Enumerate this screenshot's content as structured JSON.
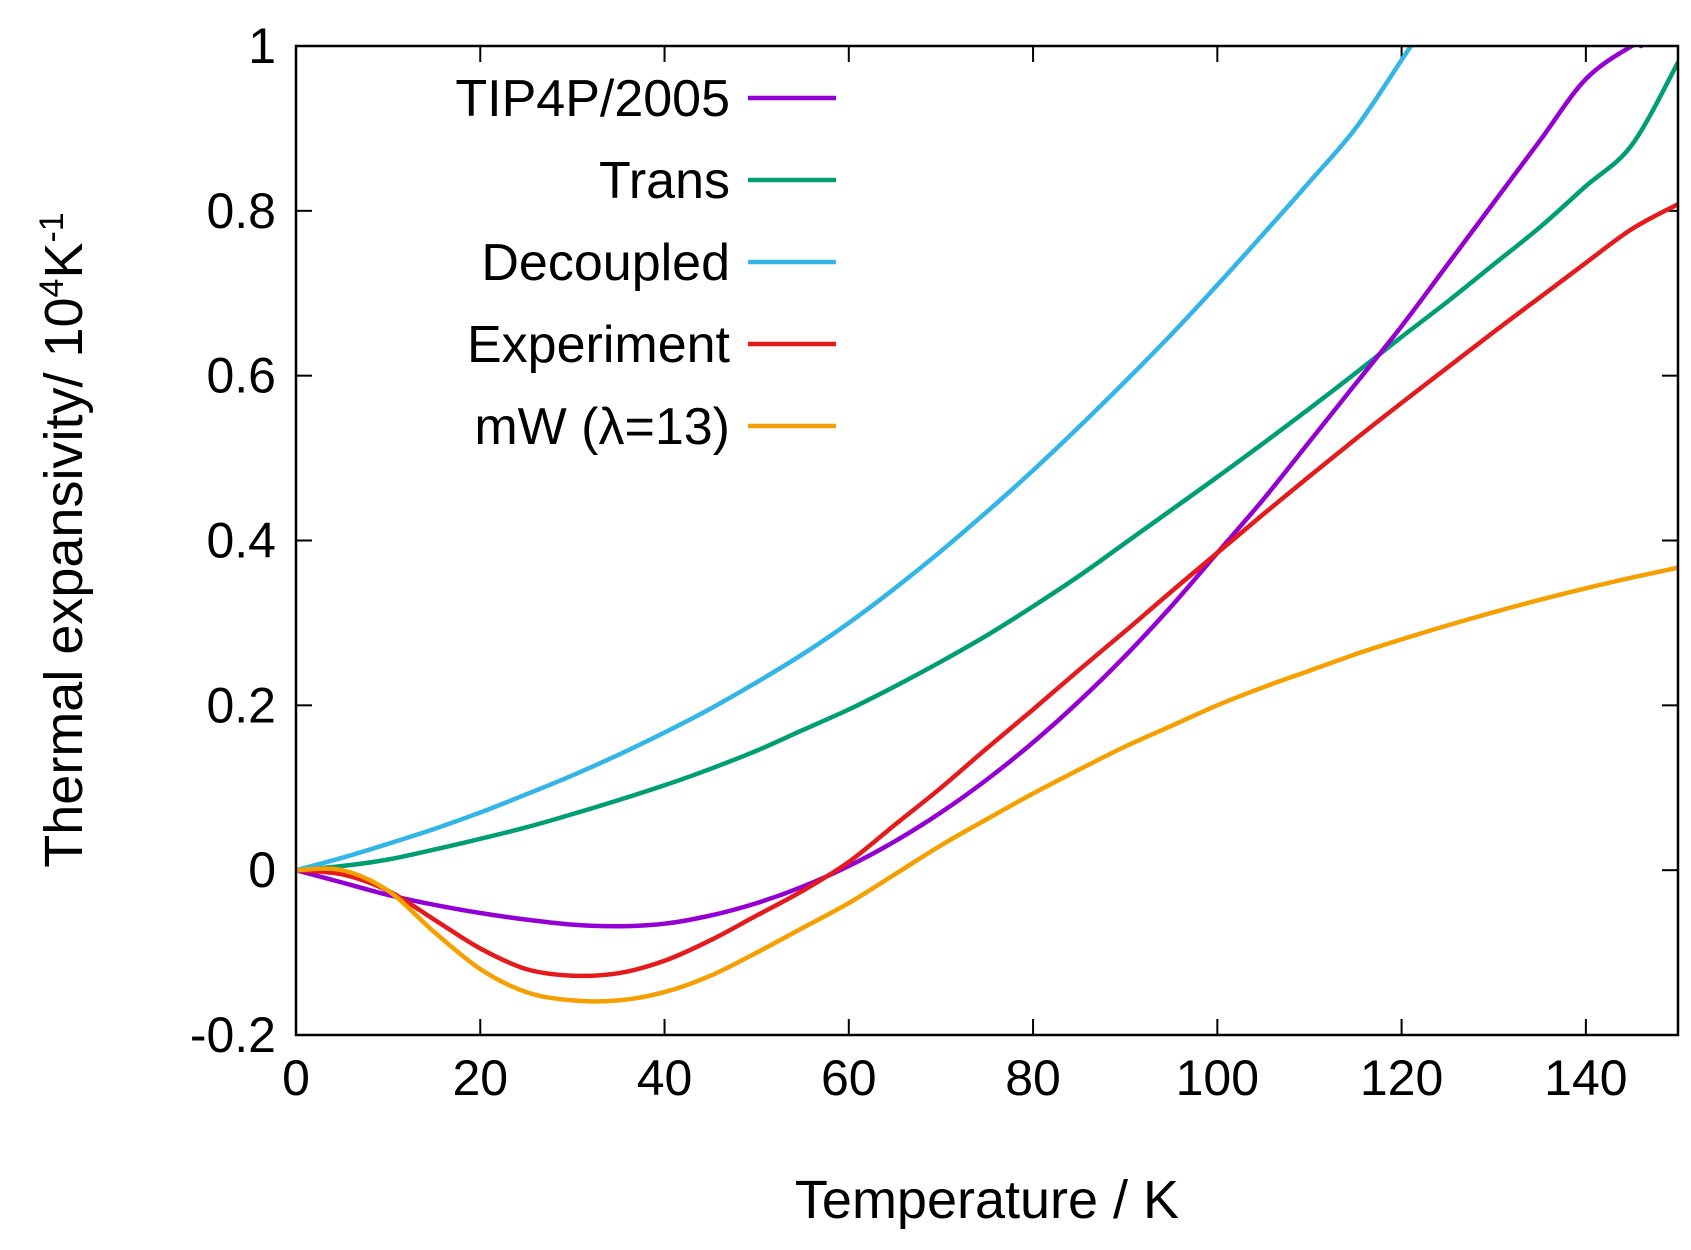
{
  "chart_data": {
    "type": "line",
    "title": "",
    "xlabel": "Temperature / K",
    "ylabel": {
      "main": "Thermal expansivity/ 10",
      "exp1": "4",
      "unit": "K",
      "exp2": "-1"
    },
    "xlim": [
      0,
      150
    ],
    "ylim": [
      -0.2,
      1.0
    ],
    "xticks": [
      0,
      20,
      40,
      60,
      80,
      100,
      120,
      140
    ],
    "yticks": [
      -0.2,
      0,
      0.2,
      0.4,
      0.6,
      0.8,
      1
    ],
    "xtick_labels": [
      "0",
      "20",
      "40",
      "60",
      "80",
      "100",
      "120",
      "140"
    ],
    "ytick_labels": [
      "-0.2",
      "0",
      "0.2",
      "0.4",
      "0.6",
      "0.8",
      "1"
    ],
    "grid": false,
    "legend_position": "top-left",
    "series": [
      {
        "name": "TIP4P/2005",
        "color": "#9400d3",
        "x": [
          0,
          5,
          10,
          15,
          20,
          25,
          30,
          35,
          40,
          45,
          50,
          55,
          60,
          65,
          70,
          75,
          80,
          85,
          90,
          95,
          100,
          105,
          110,
          115,
          120,
          125,
          130,
          135,
          140,
          145,
          146
        ],
        "y": [
          0,
          -0.015,
          -0.03,
          -0.042,
          -0.052,
          -0.06,
          -0.066,
          -0.068,
          -0.065,
          -0.055,
          -0.04,
          -0.02,
          0.005,
          0.035,
          0.07,
          0.11,
          0.155,
          0.205,
          0.26,
          0.32,
          0.385,
          0.45,
          0.52,
          0.59,
          0.66,
          0.735,
          0.81,
          0.885,
          0.96,
          1.0,
          1.0
        ]
      },
      {
        "name": "Trans",
        "color": "#009e73",
        "x": [
          0,
          5,
          10,
          15,
          20,
          25,
          30,
          35,
          40,
          45,
          50,
          55,
          60,
          65,
          70,
          75,
          80,
          85,
          90,
          95,
          100,
          105,
          110,
          115,
          120,
          125,
          130,
          135,
          140,
          145,
          150
        ],
        "y": [
          0,
          0.005,
          0.013,
          0.025,
          0.038,
          0.052,
          0.068,
          0.085,
          0.103,
          0.123,
          0.145,
          0.17,
          0.195,
          0.223,
          0.253,
          0.285,
          0.32,
          0.357,
          0.397,
          0.437,
          0.477,
          0.518,
          0.56,
          0.603,
          0.647,
          0.69,
          0.735,
          0.78,
          0.83,
          0.88,
          0.98
        ]
      },
      {
        "name": "Decoupled",
        "color": "#33b5e8",
        "x": [
          0,
          5,
          10,
          15,
          20,
          25,
          30,
          35,
          40,
          45,
          50,
          55,
          60,
          65,
          70,
          75,
          80,
          85,
          90,
          95,
          100,
          105,
          110,
          115,
          120,
          121
        ],
        "y": [
          0,
          0.015,
          0.032,
          0.05,
          0.07,
          0.092,
          0.115,
          0.14,
          0.167,
          0.196,
          0.228,
          0.262,
          0.3,
          0.342,
          0.387,
          0.435,
          0.485,
          0.538,
          0.593,
          0.65,
          0.71,
          0.772,
          0.835,
          0.9,
          0.983,
          1.0
        ]
      },
      {
        "name": "Experiment",
        "color": "#e41a1c",
        "x": [
          0,
          5,
          10,
          15,
          20,
          25,
          30,
          35,
          40,
          45,
          50,
          55,
          60,
          65,
          70,
          75,
          80,
          85,
          90,
          95,
          100,
          105,
          110,
          115,
          120,
          125,
          130,
          135,
          140,
          145,
          150
        ],
        "y": [
          0,
          -0.005,
          -0.025,
          -0.06,
          -0.095,
          -0.12,
          -0.128,
          -0.125,
          -0.11,
          -0.085,
          -0.055,
          -0.025,
          0.01,
          0.055,
          0.1,
          0.148,
          0.195,
          0.243,
          0.29,
          0.338,
          0.385,
          0.432,
          0.478,
          0.523,
          0.567,
          0.61,
          0.653,
          0.695,
          0.737,
          0.778,
          0.808
        ]
      },
      {
        "name": "mW (λ=13)",
        "color": "#f5a000",
        "x": [
          0,
          5,
          10,
          15,
          20,
          25,
          30,
          35,
          40,
          45,
          50,
          55,
          60,
          65,
          70,
          75,
          80,
          85,
          90,
          95,
          100,
          105,
          110,
          115,
          120,
          125,
          130,
          135,
          140,
          145,
          150
        ],
        "y": [
          0,
          0,
          -0.025,
          -0.075,
          -0.12,
          -0.148,
          -0.158,
          -0.158,
          -0.148,
          -0.128,
          -0.1,
          -0.07,
          -0.04,
          -0.005,
          0.03,
          0.062,
          0.093,
          0.122,
          0.15,
          0.175,
          0.2,
          0.222,
          0.242,
          0.262,
          0.28,
          0.297,
          0.313,
          0.328,
          0.342,
          0.355,
          0.367
        ]
      }
    ]
  }
}
